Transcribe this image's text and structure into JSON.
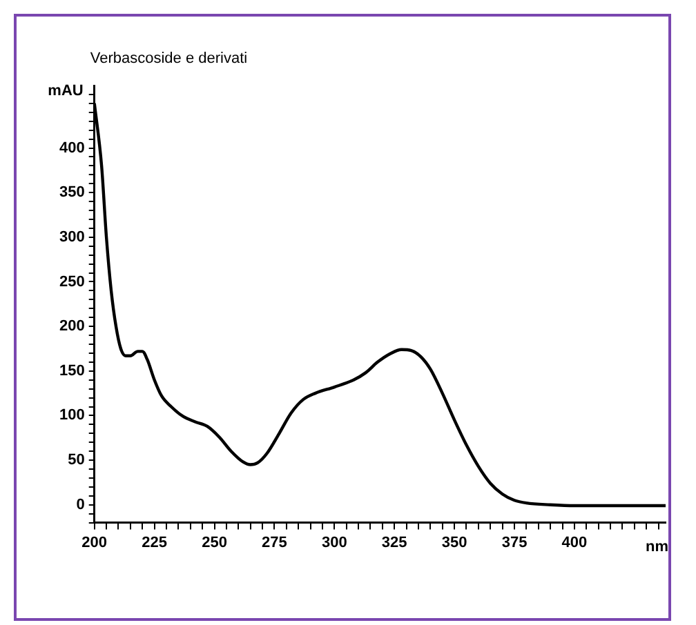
{
  "chart_data": {
    "type": "line",
    "title": "Verbascoside e derivati",
    "xlabel": "nm",
    "ylabel": "mAU",
    "x": [
      200,
      203,
      205,
      207,
      209,
      211,
      213,
      215,
      218,
      220,
      222,
      225,
      228,
      232,
      237,
      242,
      247,
      252,
      257,
      262,
      265,
      268,
      272,
      277,
      282,
      287,
      292,
      300,
      308,
      313,
      318,
      323,
      328,
      332,
      336,
      340,
      345,
      350,
      355,
      360,
      365,
      370,
      375,
      380,
      390,
      400,
      420,
      438
    ],
    "series": [
      {
        "color": "#000000",
        "values": [
          450,
          380,
          300,
          240,
          200,
          175,
          167,
          167,
          172,
          172,
          163,
          140,
          122,
          110,
          99,
          93,
          88,
          76,
          60,
          48,
          45,
          47,
          58,
          80,
          103,
          118,
          125,
          132,
          140,
          148,
          160,
          169,
          174,
          173,
          166,
          152,
          125,
          95,
          67,
          43,
          24,
          12,
          5,
          2,
          0,
          -1,
          -1,
          -1
        ]
      }
    ],
    "xlim": [
      200,
      438
    ],
    "ylim": [
      -20,
      470
    ],
    "xticks": [
      200,
      {
        "value": 205,
        "label": null
      },
      {
        "value": 210,
        "label": null
      },
      {
        "value": 215,
        "label": null
      },
      {
        "value": 220,
        "label": null
      },
      225,
      {
        "value": 230,
        "label": null
      },
      {
        "value": 235,
        "label": null
      },
      {
        "value": 240,
        "label": null
      },
      {
        "value": 245,
        "label": null
      },
      250,
      {
        "value": 255,
        "label": null
      },
      {
        "value": 260,
        "label": null
      },
      {
        "value": 265,
        "label": null
      },
      {
        "value": 270,
        "label": null
      },
      275,
      {
        "value": 280,
        "label": null
      },
      {
        "value": 285,
        "label": null
      },
      {
        "value": 290,
        "label": null
      },
      {
        "value": 295,
        "label": null
      },
      300,
      {
        "value": 305,
        "label": null
      },
      {
        "value": 310,
        "label": null
      },
      {
        "value": 315,
        "label": null
      },
      {
        "value": 320,
        "label": null
      },
      325,
      {
        "value": 330,
        "label": null
      },
      {
        "value": 335,
        "label": null
      },
      {
        "value": 340,
        "label": null
      },
      {
        "value": 345,
        "label": null
      },
      350,
      {
        "value": 355,
        "label": null
      },
      {
        "value": 360,
        "label": null
      },
      {
        "value": 365,
        "label": null
      },
      {
        "value": 370,
        "label": null
      },
      375,
      {
        "value": 380,
        "label": null
      },
      {
        "value": 385,
        "label": null
      },
      {
        "value": 390,
        "label": null
      },
      {
        "value": 395,
        "label": null
      },
      400,
      {
        "value": 405,
        "label": null
      },
      {
        "value": 410,
        "label": null
      },
      {
        "value": 415,
        "label": null
      },
      {
        "value": 420,
        "label": null
      },
      {
        "value": 425,
        "label": null
      },
      {
        "value": 430,
        "label": null
      },
      {
        "value": 435,
        "label": null
      }
    ],
    "yticks": [
      {
        "value": -20,
        "label": null
      },
      {
        "value": -10,
        "label": null
      },
      0,
      {
        "value": 10,
        "label": null
      },
      {
        "value": 20,
        "label": null
      },
      {
        "value": 30,
        "label": null
      },
      {
        "value": 40,
        "label": null
      },
      50,
      {
        "value": 60,
        "label": null
      },
      {
        "value": 70,
        "label": null
      },
      {
        "value": 80,
        "label": null
      },
      {
        "value": 90,
        "label": null
      },
      100,
      {
        "value": 110,
        "label": null
      },
      {
        "value": 120,
        "label": null
      },
      {
        "value": 130,
        "label": null
      },
      {
        "value": 140,
        "label": null
      },
      150,
      {
        "value": 160,
        "label": null
      },
      {
        "value": 170,
        "label": null
      },
      {
        "value": 180,
        "label": null
      },
      {
        "value": 190,
        "label": null
      },
      200,
      {
        "value": 210,
        "label": null
      },
      {
        "value": 220,
        "label": null
      },
      {
        "value": 230,
        "label": null
      },
      {
        "value": 240,
        "label": null
      },
      250,
      {
        "value": 260,
        "label": null
      },
      {
        "value": 270,
        "label": null
      },
      {
        "value": 280,
        "label": null
      },
      {
        "value": 290,
        "label": null
      },
      300,
      {
        "value": 310,
        "label": null
      },
      {
        "value": 320,
        "label": null
      },
      {
        "value": 330,
        "label": null
      },
      {
        "value": 340,
        "label": null
      },
      350,
      {
        "value": 360,
        "label": null
      },
      {
        "value": 370,
        "label": null
      },
      {
        "value": 380,
        "label": null
      },
      {
        "value": 390,
        "label": null
      },
      400,
      {
        "value": 410,
        "label": null
      },
      {
        "value": 420,
        "label": null
      },
      {
        "value": 430,
        "label": null
      },
      {
        "value": 440,
        "label": null
      },
      {
        "value": 450,
        "label": null
      },
      {
        "value": 460,
        "label": null
      }
    ],
    "grid": false,
    "legend": false,
    "marker": "none",
    "line_style": "solid"
  }
}
